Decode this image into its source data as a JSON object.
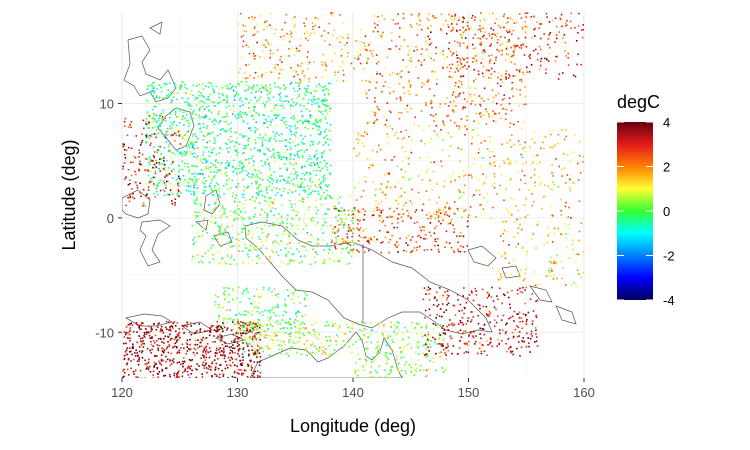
{
  "chart_data": {
    "type": "scatter",
    "title": "",
    "xlabel": "Longitude (deg)",
    "ylabel": "Latitude (deg)",
    "xlim": [
      120,
      160
    ],
    "ylim": [
      -14,
      18
    ],
    "x_ticks": [
      120,
      130,
      140,
      150,
      160
    ],
    "x_tick_labels": [
      "120",
      "130",
      "140",
      "150",
      "160"
    ],
    "y_ticks": [
      -10,
      0,
      10
    ],
    "y_tick_labels": [
      "-10",
      "0",
      "10"
    ],
    "grid": true,
    "color_variable": "degC",
    "color_range": [
      -4,
      4
    ],
    "colorbar_ticks": [
      4,
      2,
      0,
      -2,
      -4
    ],
    "colorbar_tick_labels": [
      "4",
      "2",
      "0",
      "-2",
      "-4"
    ],
    "colorbar_colors": [
      "#67000d",
      "#e31a1c",
      "#ff7f00",
      "#ffff33",
      "#33ff33",
      "#00ffff",
      "#0080ff",
      "#0000ff",
      "#00005a"
    ],
    "legend_position": "right",
    "regions": [
      {
        "lon": [
          122,
          138
        ],
        "lat": [
          2,
          12
        ],
        "mean": -0.3,
        "n": 1400
      },
      {
        "lon": [
          126,
          140
        ],
        "lat": [
          -4,
          2
        ],
        "mean": 0.2,
        "n": 500
      },
      {
        "lon": [
          128,
          136
        ],
        "lat": [
          -10,
          -6
        ],
        "mean": 0.0,
        "n": 200
      },
      {
        "lon": [
          120,
          132
        ],
        "lat": [
          -14,
          -9
        ],
        "mean": 3.6,
        "n": 700
      },
      {
        "lon": [
          130,
          140
        ],
        "lat": [
          -12,
          -9
        ],
        "mean": 0.7,
        "n": 220
      },
      {
        "lon": [
          140,
          148
        ],
        "lat": [
          -14,
          -9
        ],
        "mean": 0.5,
        "n": 240
      },
      {
        "lon": [
          138,
          150
        ],
        "lat": [
          -3,
          1
        ],
        "mean": 2.6,
        "n": 250
      },
      {
        "lon": [
          146,
          156
        ],
        "lat": [
          -12,
          -6
        ],
        "mean": 3.2,
        "n": 320
      },
      {
        "lon": [
          140,
          160
        ],
        "lat": [
          0,
          8
        ],
        "mean": 1.6,
        "n": 400
      },
      {
        "lon": [
          141,
          155
        ],
        "lat": [
          8,
          18
        ],
        "mean": 2.1,
        "n": 500
      },
      {
        "lon": [
          148,
          160
        ],
        "lat": [
          12,
          18
        ],
        "mean": 2.8,
        "n": 220
      },
      {
        "lon": [
          130,
          141
        ],
        "lat": [
          12,
          18
        ],
        "mean": 1.8,
        "n": 220
      },
      {
        "lon": [
          120,
          125
        ],
        "lat": [
          1,
          9
        ],
        "mean": 3.1,
        "n": 160
      },
      {
        "lon": [
          152,
          160
        ],
        "lat": [
          -6,
          0
        ],
        "mean": 1.4,
        "n": 120
      }
    ]
  }
}
